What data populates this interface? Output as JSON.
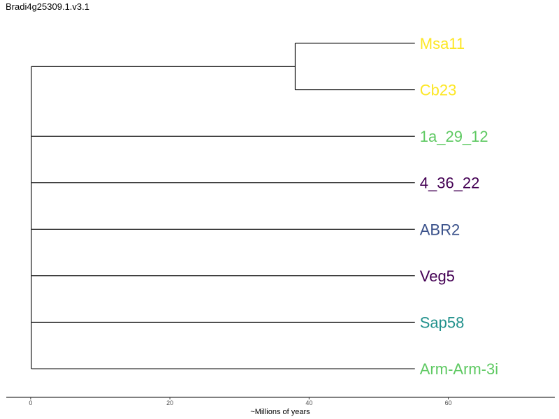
{
  "title": "Bradi4g25309.1.v3.1",
  "chart_data": {
    "type": "phylogenetic-tree",
    "title": "Bradi4g25309.1.v3.1",
    "xlabel": "~Millions of years",
    "ylabel": "",
    "x_ticks": [
      {
        "value": 0,
        "label": "0"
      },
      {
        "value": 20,
        "label": "20"
      },
      {
        "value": 40,
        "label": "40"
      },
      {
        "value": 60,
        "label": "60"
      }
    ],
    "xlim": [
      -3.5,
      75.3
    ],
    "tips": [
      {
        "name": "Msa11",
        "color": "#fde725",
        "depth": 55.2
      },
      {
        "name": "Cb23",
        "color": "#fde725",
        "depth": 55.2
      },
      {
        "name": "1a_29_12",
        "color": "#5ec962",
        "depth": 55.2
      },
      {
        "name": "4_36_22",
        "color": "#440154",
        "depth": 55.2
      },
      {
        "name": "ABR2",
        "color": "#3b528b",
        "depth": 55.2
      },
      {
        "name": "Veg5",
        "color": "#440154",
        "depth": 55.2
      },
      {
        "name": "Sap58",
        "color": "#21918c",
        "depth": 55.2
      },
      {
        "name": "Arm-Arm-3i",
        "color": "#5ec962",
        "depth": 55.2
      }
    ],
    "internal_nodes": [
      {
        "id": "root",
        "depth": 0.1,
        "children": [
          "n1",
          "1a_29_12",
          "4_36_22",
          "ABR2",
          "Veg5",
          "Sap58",
          "Arm-Arm-3i"
        ]
      },
      {
        "id": "n1",
        "depth": 38.0,
        "children": [
          "Msa11",
          "Cb23"
        ]
      }
    ]
  }
}
